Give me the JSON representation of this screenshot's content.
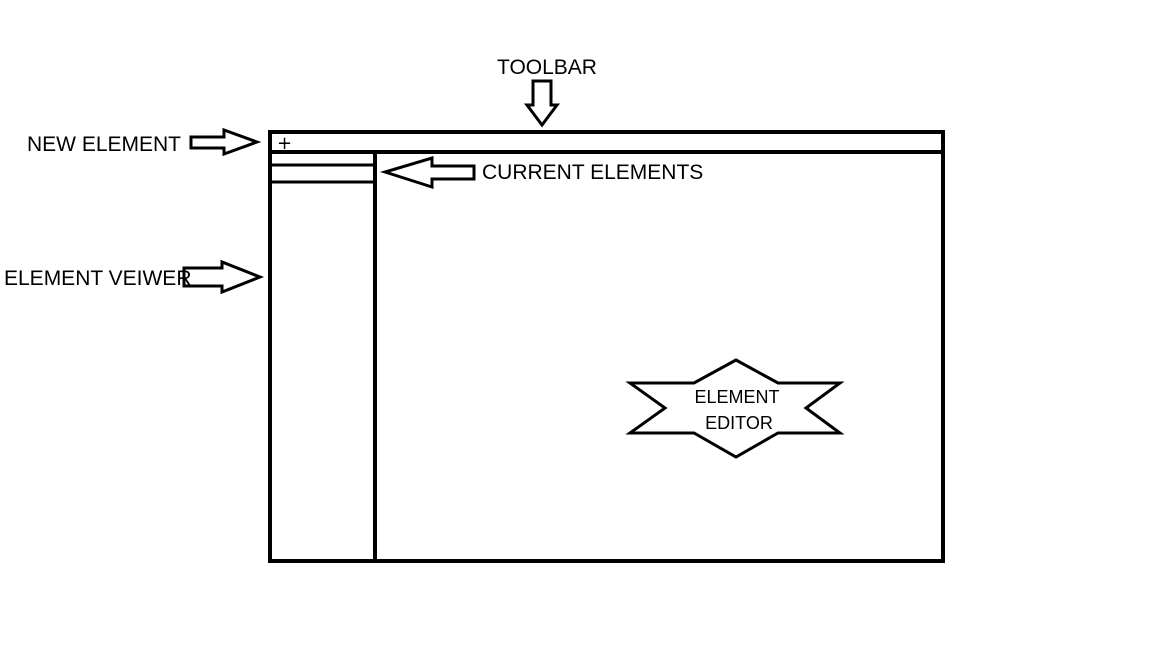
{
  "labels": {
    "toolbar": "TOOLBAR",
    "new_element": "NEW ELEMENT",
    "current_elements": "CURRENT ELEMENTS",
    "element_viewer": "ELEMENT VEIWER",
    "editor_line1": "ELEMENT",
    "editor_line2": "EDITOR"
  },
  "toolbar": {
    "new_button_glyph": "+"
  },
  "colors": {
    "stroke": "#000000",
    "background": "#ffffff"
  }
}
